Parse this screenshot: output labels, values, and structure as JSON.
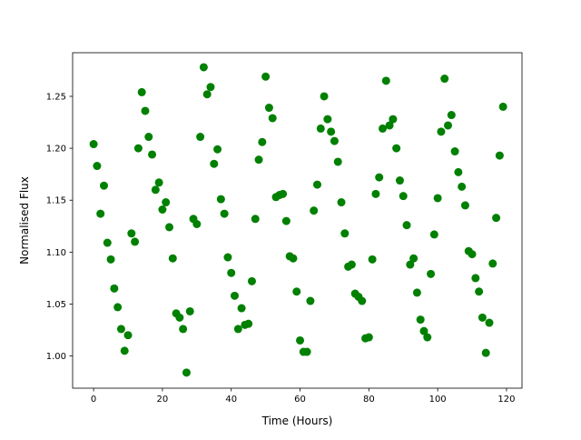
{
  "chart_data": {
    "type": "scatter",
    "title": "",
    "xlabel": "Time (Hours)",
    "ylabel": "Normalised Flux",
    "xlim": [
      -6.1,
      124.5
    ],
    "ylim": [
      0.969,
      1.292
    ],
    "x_ticks": [
      0,
      20,
      40,
      60,
      80,
      100,
      120
    ],
    "x_tick_labels": [
      "0",
      "20",
      "40",
      "60",
      "80",
      "100",
      "120"
    ],
    "y_ticks": [
      1.0,
      1.05,
      1.1,
      1.15,
      1.2,
      1.25
    ],
    "y_tick_labels": [
      "1.00",
      "1.05",
      "1.10",
      "1.15",
      "1.20",
      "1.25"
    ],
    "grid": false,
    "marker_color": "#008000",
    "series": [
      {
        "x": [
          0,
          1,
          2,
          3,
          4,
          5,
          6,
          7,
          8,
          9,
          10,
          11,
          12,
          13,
          14,
          15,
          16,
          17,
          18,
          19,
          20,
          21,
          22,
          23,
          24,
          25,
          26,
          27,
          28,
          29,
          30,
          31,
          32,
          33,
          34,
          35,
          36,
          37,
          38,
          39,
          40,
          41,
          42,
          43,
          44,
          45,
          46,
          47,
          48,
          49,
          50,
          51,
          52,
          53,
          54,
          55,
          56,
          57,
          58,
          59,
          60,
          61,
          62,
          63,
          64,
          65,
          66,
          67,
          68,
          69,
          70,
          71,
          72,
          73,
          74,
          75,
          76,
          77,
          78,
          79,
          80,
          81,
          82,
          83,
          84,
          85,
          86,
          87,
          88,
          89,
          90,
          91,
          92,
          93,
          94,
          95,
          96,
          97,
          98,
          99,
          100,
          101,
          102,
          103,
          104,
          105,
          106,
          107,
          108,
          109,
          110,
          111,
          112,
          113,
          114,
          115,
          116,
          117,
          118,
          119
        ],
        "y": [
          1.204,
          1.183,
          1.137,
          1.164,
          1.109,
          1.093,
          1.065,
          1.047,
          1.026,
          1.005,
          1.02,
          1.118,
          1.11,
          1.2,
          1.254,
          1.236,
          1.211,
          1.194,
          1.16,
          1.167,
          1.141,
          1.148,
          1.124,
          1.094,
          1.041,
          1.037,
          1.026,
          0.984,
          1.043,
          1.132,
          1.127,
          1.211,
          1.278,
          1.252,
          1.259,
          1.185,
          1.199,
          1.151,
          1.137,
          1.095,
          1.08,
          1.058,
          1.026,
          1.046,
          1.03,
          1.031,
          1.072,
          1.132,
          1.189,
          1.206,
          1.269,
          1.239,
          1.229,
          1.153,
          1.155,
          1.156,
          1.13,
          1.096,
          1.094,
          1.062,
          1.015,
          1.004,
          1.004,
          1.053,
          1.14,
          1.165,
          1.219,
          1.25,
          1.228,
          1.216,
          1.207,
          1.187,
          1.148,
          1.118,
          1.086,
          1.088,
          1.06,
          1.057,
          1.053,
          1.017,
          1.018,
          1.093,
          1.156,
          1.172,
          1.219,
          1.265,
          1.222,
          1.228,
          1.2,
          1.169,
          1.154,
          1.126,
          1.088,
          1.094,
          1.061,
          1.035,
          1.024,
          1.018,
          1.079,
          1.117,
          1.152,
          1.216,
          1.267,
          1.222,
          1.232,
          1.197,
          1.177,
          1.163,
          1.145,
          1.101,
          1.098,
          1.075,
          1.062,
          1.037,
          1.003,
          1.032,
          1.089,
          1.133,
          1.193,
          1.24
        ]
      }
    ]
  }
}
